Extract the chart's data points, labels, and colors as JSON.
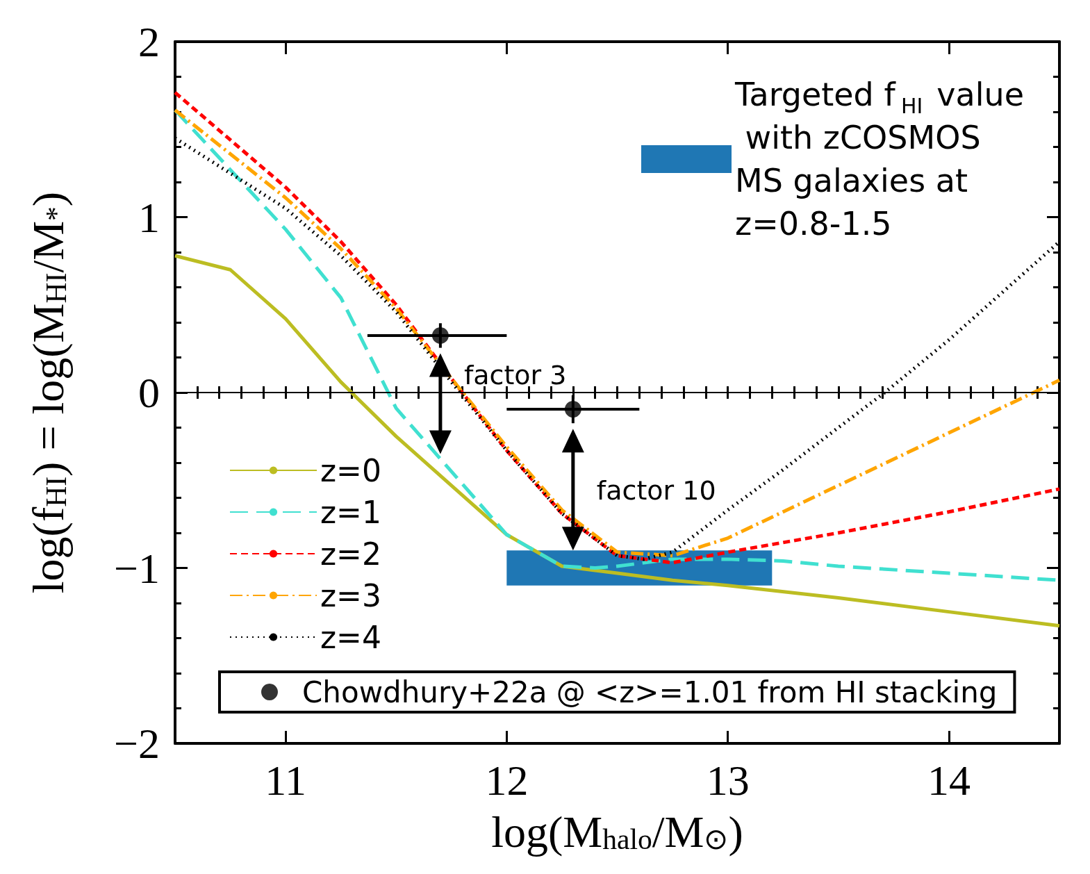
{
  "chart_data": {
    "type": "line",
    "xlabel": "log(M$_{halo}$/M$_{⊙}$)",
    "ylabel": "log(f$_{HI}$) = log(M$_{HI}$/M$_{*}$)",
    "xlim": [
      10.5,
      14.5
    ],
    "xticks": [
      11,
      12,
      13,
      14
    ],
    "ylim": [
      -2,
      2
    ],
    "yticks": [
      -2,
      -1,
      0,
      1,
      2
    ],
    "grid": false,
    "legend": "bottom left",
    "ref_lines": [
      {
        "axis": "y",
        "value": 0,
        "color": "#000000"
      }
    ],
    "series": [
      {
        "name": "z=0",
        "color": "#bcbd22",
        "line_style": "solid",
        "marker": "none",
        "x": [
          10.5,
          10.75,
          11,
          11.25,
          11.5,
          11.75,
          12,
          12.25,
          12.5,
          12.75,
          13,
          13.5,
          14,
          14.5
        ],
        "values": [
          0.78,
          0.7,
          0.42,
          0.06,
          -0.25,
          -0.53,
          -0.81,
          -0.99,
          -1.03,
          -1.07,
          -1.1,
          -1.17,
          -1.25,
          -1.33
        ]
      },
      {
        "name": "z=1",
        "color": "#40e0d0",
        "line_style": "longdash",
        "marker": "none",
        "x": [
          10.5,
          10.75,
          11,
          11.25,
          11.5,
          11.75,
          12,
          12.25,
          12.4,
          12.5,
          12.75,
          13,
          13.25,
          13.5,
          14,
          14.5
        ],
        "values": [
          1.61,
          1.27,
          0.93,
          0.54,
          -0.09,
          -0.45,
          -0.81,
          -0.99,
          -1.0,
          -0.99,
          -0.95,
          -0.95,
          -0.96,
          -0.99,
          -1.03,
          -1.07
        ]
      },
      {
        "name": "z=2",
        "color": "#ff0000",
        "line_style": "dashed",
        "marker": "none",
        "x": [
          10.5,
          11,
          11.25,
          11.5,
          11.75,
          12,
          12.25,
          12.5,
          12.75,
          13,
          13.5,
          14,
          14.5
        ],
        "values": [
          1.71,
          1.17,
          0.86,
          0.5,
          0.08,
          -0.33,
          -0.69,
          -0.93,
          -0.97,
          -0.91,
          -0.8,
          -0.68,
          -0.55
        ]
      },
      {
        "name": "z=3",
        "color": "#ffa500",
        "line_style": "dashdot",
        "marker": "none",
        "x": [
          10.5,
          11,
          11.25,
          11.5,
          11.75,
          12,
          12.25,
          12.5,
          12.75,
          13,
          13.5,
          14,
          14.5
        ],
        "values": [
          1.61,
          1.11,
          0.82,
          0.48,
          0.08,
          -0.31,
          -0.67,
          -0.91,
          -0.93,
          -0.83,
          -0.53,
          -0.23,
          0.07
        ]
      },
      {
        "name": "z=4",
        "color": "#000000",
        "line_style": "dotted",
        "marker": "none",
        "x": [
          10.5,
          11,
          11.25,
          11.5,
          11.75,
          12,
          12.25,
          12.5,
          12.62,
          12.75,
          13,
          13.25,
          13.5,
          13.71,
          14,
          14.5
        ],
        "values": [
          1.45,
          1.05,
          0.78,
          0.46,
          0.06,
          -0.33,
          -0.69,
          -0.93,
          -0.95,
          -0.91,
          -0.67,
          -0.44,
          -0.2,
          0,
          0.3,
          0.86
        ]
      },
      {
        "name": "Targeted f$_{HI}$ value with zCOSMOS MS galaxies at z=0.8-1.5",
        "type": "bar",
        "color": "#1f77b4",
        "x": [
          12.6
        ],
        "base": [
          -1.1
        ],
        "values": [
          0.2
        ]
      },
      {
        "name": "Chowdhury+22a @ <z>=1.01 from HI stacking",
        "type": "scatter",
        "color": "#000000",
        "marker": "circle",
        "x": [
          11.7,
          12.3
        ],
        "values": [
          0.325,
          -0.095
        ],
        "errors": [
          0.07,
          0.08
        ],
        "xerrors": [
          [
            11.37,
            12.0
          ],
          [
            12.0,
            12.6
          ]
        ]
      }
    ],
    "annotations": [
      {
        "text": "factor 3",
        "x": 11.7,
        "y": -0.35
      },
      {
        "text": "factor 10",
        "x": 12.3,
        "y": -0.9
      }
    ]
  }
}
